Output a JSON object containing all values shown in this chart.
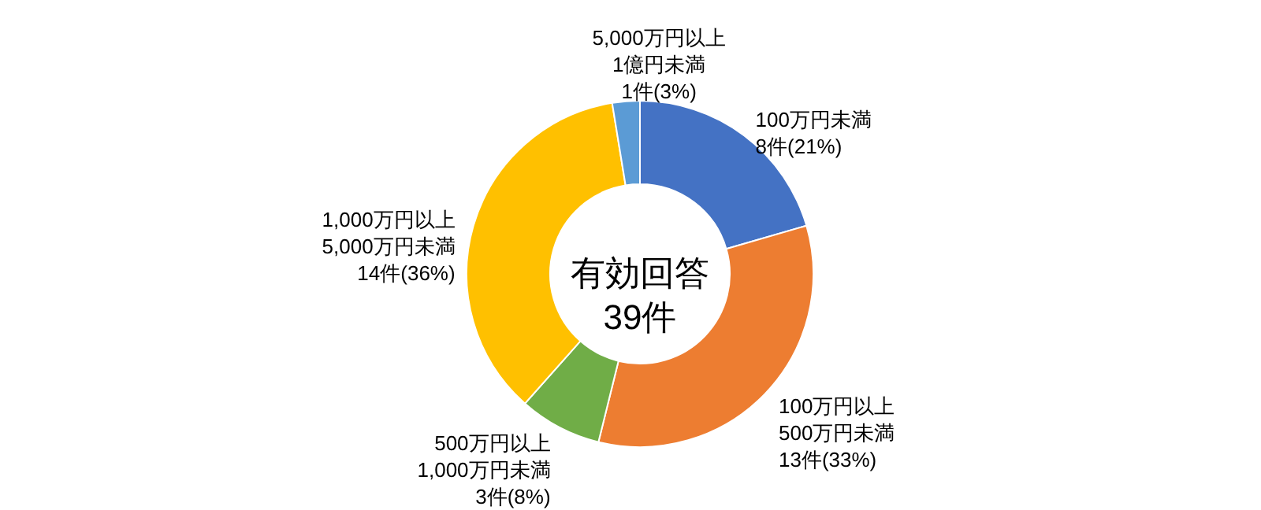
{
  "chart_data": {
    "type": "donut",
    "categories": [
      "100万円未満",
      "100万円以上\n500万円未満",
      "500万円以上\n1,000万円未満",
      "1,000万円以上\n5,000万円未満",
      "5,000万円以上\n1億円未満"
    ],
    "values": [
      8,
      13,
      3,
      14,
      1
    ],
    "colors": [
      "#4472c4",
      "#ed7d31",
      "#70ad47",
      "#ffc000",
      "#5b9bd5"
    ],
    "value_labels": [
      "8件(21%)",
      "13件(33%)",
      "3件(8%)",
      "14件(36%)",
      "1件(3%)"
    ],
    "annotations": [
      "有効回答\n39件"
    ]
  }
}
